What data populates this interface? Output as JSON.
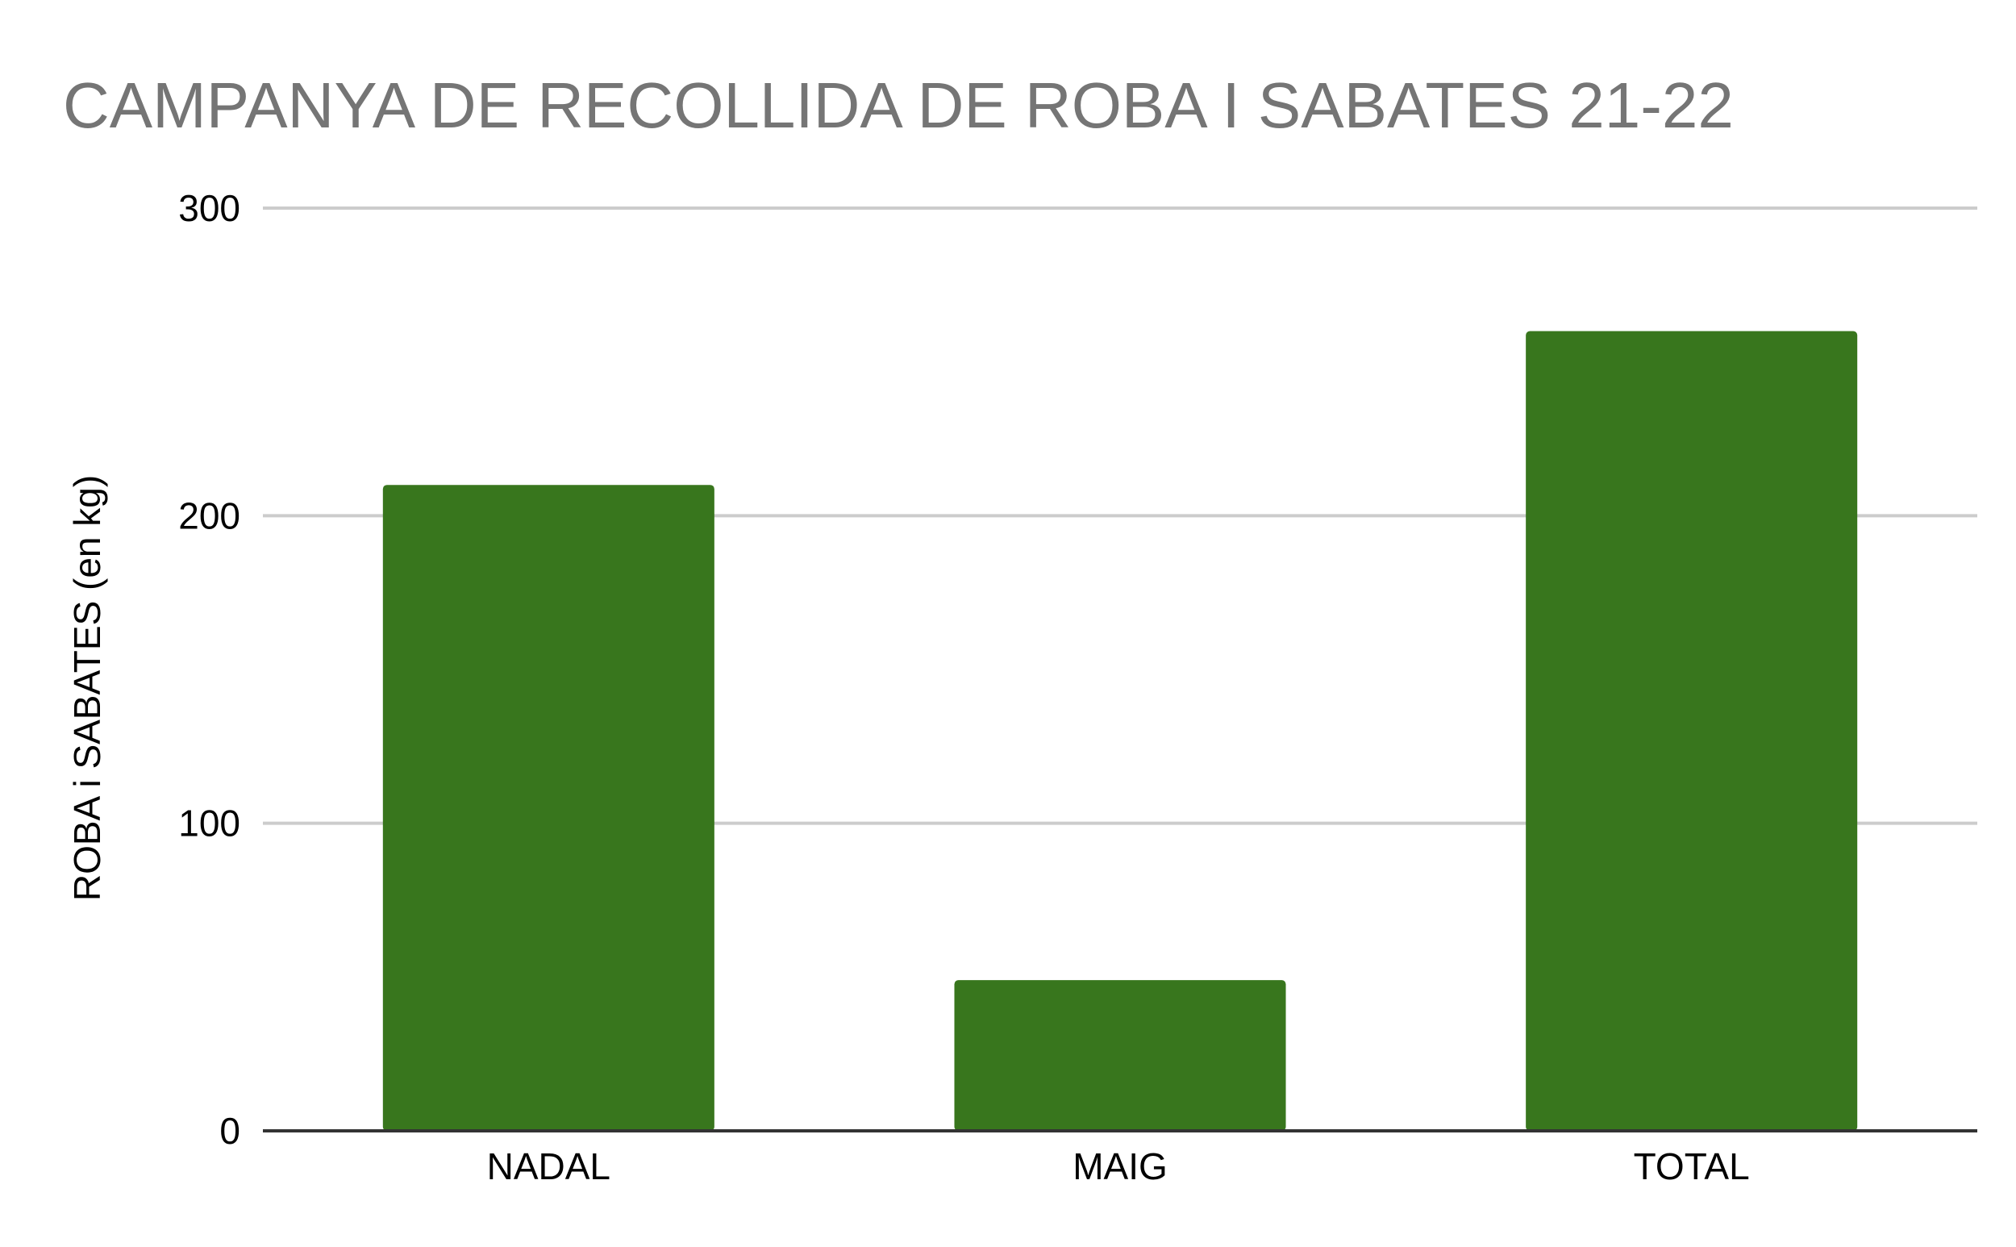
{
  "chart_data": {
    "type": "bar",
    "title": "CAMPANYA DE RECOLLIDA DE ROBA I SABATES 21-22",
    "xlabel": "",
    "ylabel": "ROBA i SABATES (en kg)",
    "categories": [
      "NADAL",
      "MAIG",
      "TOTAL"
    ],
    "values": [
      210,
      49,
      260
    ],
    "ylim": [
      0,
      300
    ],
    "yticks": [
      0,
      100,
      200,
      300
    ],
    "ytick_labels": [
      "0",
      "100",
      "200",
      "300"
    ],
    "grid": true,
    "legend": "none",
    "bar_color": "#38761d",
    "title_color": "#757575",
    "grid_color": "#cccccc",
    "baseline_color": "#333333"
  }
}
